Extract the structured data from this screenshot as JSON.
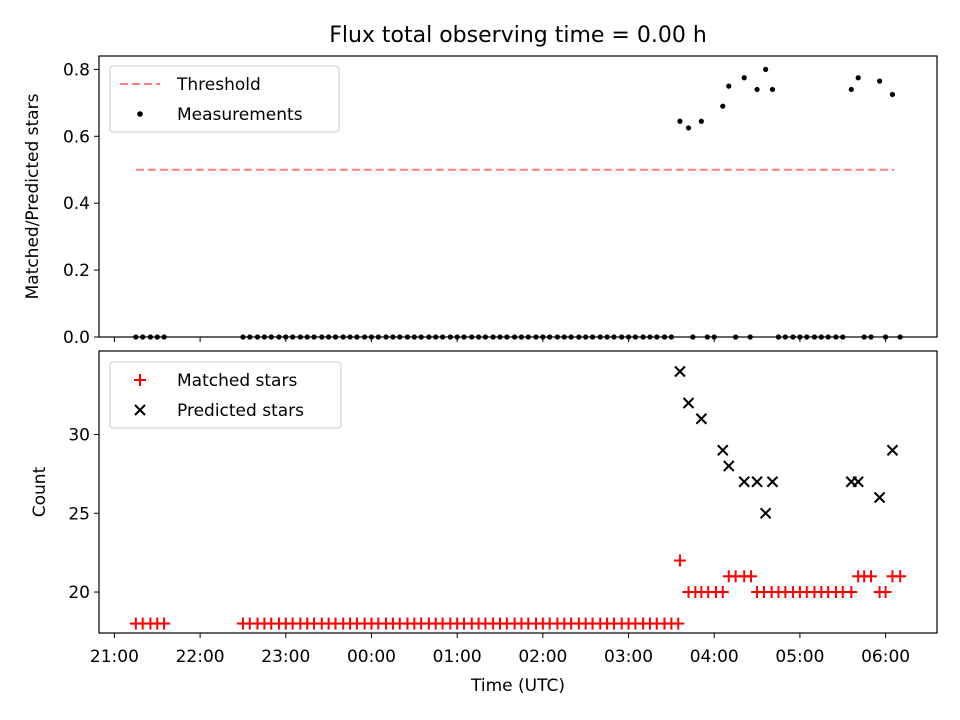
{
  "chart_data": {
    "type": "scatter",
    "title": "Flux total observing time = 0.00 h",
    "xlabel": "Time (UTC)",
    "x_tick_labels": [
      "21:00",
      "22:00",
      "23:00",
      "00:00",
      "01:00",
      "02:00",
      "03:00",
      "04:00",
      "05:00",
      "06:00"
    ],
    "x_tick_values": [
      21,
      22,
      23,
      24,
      25,
      26,
      27,
      28,
      29,
      30
    ],
    "xlim": [
      20.82,
      30.6
    ],
    "panels": [
      {
        "name": "top",
        "ylabel": "Matched/Predicted stars",
        "ylim": [
          0,
          0.84
        ],
        "y_ticks": [
          0,
          0.2,
          0.4,
          0.6,
          0.8
        ],
        "y_tick_labels": [
          "0.0",
          "0.2",
          "0.4",
          "0.6",
          "0.8"
        ],
        "legend_position": "upper-left",
        "threshold": {
          "name": "Threshold",
          "value": 0.5,
          "x_range": [
            21.25,
            30.1
          ],
          "color": "#ff7f7f"
        },
        "measurements": {
          "name": "Measurements",
          "color": "#000000",
          "zero_x": [
            21.25,
            21.33,
            21.42,
            21.5,
            21.58,
            22.5,
            22.58,
            22.67,
            22.75,
            22.83,
            22.92,
            23.0,
            23.08,
            23.17,
            23.25,
            23.33,
            23.42,
            23.5,
            23.58,
            23.67,
            23.75,
            23.83,
            23.92,
            24.0,
            24.08,
            24.17,
            24.25,
            24.33,
            24.42,
            24.5,
            24.58,
            24.67,
            24.75,
            24.83,
            24.92,
            25.0,
            25.08,
            25.17,
            25.25,
            25.33,
            25.42,
            25.5,
            25.58,
            25.67,
            25.75,
            25.83,
            25.92,
            26.0,
            26.08,
            26.17,
            26.25,
            26.33,
            26.42,
            26.5,
            26.58,
            26.67,
            26.75,
            26.83,
            26.92,
            27.0,
            27.08,
            27.17,
            27.25,
            27.33,
            27.42,
            27.5,
            27.75,
            27.92,
            28.0,
            28.25,
            28.42,
            28.75,
            28.83,
            28.92,
            29.0,
            29.08,
            29.17,
            29.25,
            29.33,
            29.42,
            29.5,
            29.75,
            29.83,
            30.0,
            30.17
          ],
          "points": [
            [
              27.6,
              0.645
            ],
            [
              27.7,
              0.625
            ],
            [
              27.85,
              0.645
            ],
            [
              28.1,
              0.69
            ],
            [
              28.17,
              0.75
            ],
            [
              28.35,
              0.775
            ],
            [
              28.5,
              0.74
            ],
            [
              28.6,
              0.8
            ],
            [
              28.68,
              0.74
            ],
            [
              29.6,
              0.74
            ],
            [
              29.68,
              0.775
            ],
            [
              29.93,
              0.765
            ],
            [
              30.08,
              0.725
            ]
          ]
        }
      },
      {
        "name": "bottom",
        "ylabel": "Count",
        "ylim": [
          17.4,
          35.3
        ],
        "y_ticks": [
          20,
          25,
          30
        ],
        "y_tick_labels": [
          "20",
          "25",
          "30"
        ],
        "legend_position": "upper-left",
        "series": [
          {
            "name": "Matched stars",
            "marker": "plus",
            "color": "#ff0000",
            "points": [
              [
                21.25,
                18
              ],
              [
                21.33,
                18
              ],
              [
                21.42,
                18
              ],
              [
                21.5,
                18
              ],
              [
                21.58,
                18
              ],
              [
                22.5,
                18
              ],
              [
                22.58,
                18
              ],
              [
                22.67,
                18
              ],
              [
                22.75,
                18
              ],
              [
                22.83,
                18
              ],
              [
                22.92,
                18
              ],
              [
                23.0,
                18
              ],
              [
                23.08,
                18
              ],
              [
                23.17,
                18
              ],
              [
                23.25,
                18
              ],
              [
                23.33,
                18
              ],
              [
                23.42,
                18
              ],
              [
                23.5,
                18
              ],
              [
                23.58,
                18
              ],
              [
                23.67,
                18
              ],
              [
                23.75,
                18
              ],
              [
                23.83,
                18
              ],
              [
                23.92,
                18
              ],
              [
                24.0,
                18
              ],
              [
                24.08,
                18
              ],
              [
                24.17,
                18
              ],
              [
                24.25,
                18
              ],
              [
                24.33,
                18
              ],
              [
                24.42,
                18
              ],
              [
                24.5,
                18
              ],
              [
                24.58,
                18
              ],
              [
                24.67,
                18
              ],
              [
                24.75,
                18
              ],
              [
                24.83,
                18
              ],
              [
                24.92,
                18
              ],
              [
                25.0,
                18
              ],
              [
                25.08,
                18
              ],
              [
                25.17,
                18
              ],
              [
                25.25,
                18
              ],
              [
                25.33,
                18
              ],
              [
                25.42,
                18
              ],
              [
                25.5,
                18
              ],
              [
                25.58,
                18
              ],
              [
                25.67,
                18
              ],
              [
                25.75,
                18
              ],
              [
                25.83,
                18
              ],
              [
                25.92,
                18
              ],
              [
                26.0,
                18
              ],
              [
                26.08,
                18
              ],
              [
                26.17,
                18
              ],
              [
                26.25,
                18
              ],
              [
                26.33,
                18
              ],
              [
                26.42,
                18
              ],
              [
                26.5,
                18
              ],
              [
                26.58,
                18
              ],
              [
                26.67,
                18
              ],
              [
                26.75,
                18
              ],
              [
                26.83,
                18
              ],
              [
                26.92,
                18
              ],
              [
                27.0,
                18
              ],
              [
                27.08,
                18
              ],
              [
                27.17,
                18
              ],
              [
                27.25,
                18
              ],
              [
                27.33,
                18
              ],
              [
                27.42,
                18
              ],
              [
                27.5,
                18
              ],
              [
                27.58,
                18
              ],
              [
                27.6,
                22
              ],
              [
                27.7,
                20
              ],
              [
                27.78,
                20
              ],
              [
                27.85,
                20
              ],
              [
                27.93,
                20
              ],
              [
                28.02,
                20
              ],
              [
                28.1,
                20
              ],
              [
                28.17,
                21
              ],
              [
                28.25,
                21
              ],
              [
                28.35,
                21
              ],
              [
                28.43,
                21
              ],
              [
                28.5,
                20
              ],
              [
                28.58,
                20
              ],
              [
                28.67,
                20
              ],
              [
                28.75,
                20
              ],
              [
                28.83,
                20
              ],
              [
                28.92,
                20
              ],
              [
                29.0,
                20
              ],
              [
                29.08,
                20
              ],
              [
                29.17,
                20
              ],
              [
                29.25,
                20
              ],
              [
                29.33,
                20
              ],
              [
                29.42,
                20
              ],
              [
                29.5,
                20
              ],
              [
                29.6,
                20
              ],
              [
                29.68,
                21
              ],
              [
                29.75,
                21
              ],
              [
                29.83,
                21
              ],
              [
                29.93,
                20
              ],
              [
                30.0,
                20
              ],
              [
                30.08,
                21
              ],
              [
                30.17,
                21
              ]
            ]
          },
          {
            "name": "Predicted stars",
            "marker": "x",
            "color": "#000000",
            "points": [
              [
                27.6,
                34
              ],
              [
                27.7,
                32
              ],
              [
                27.85,
                31
              ],
              [
                28.1,
                29
              ],
              [
                28.17,
                28
              ],
              [
                28.35,
                27
              ],
              [
                28.5,
                27
              ],
              [
                28.6,
                25
              ],
              [
                28.68,
                27
              ],
              [
                29.6,
                27
              ],
              [
                29.68,
                27
              ],
              [
                29.93,
                26
              ],
              [
                30.08,
                29
              ]
            ]
          }
        ]
      }
    ]
  }
}
